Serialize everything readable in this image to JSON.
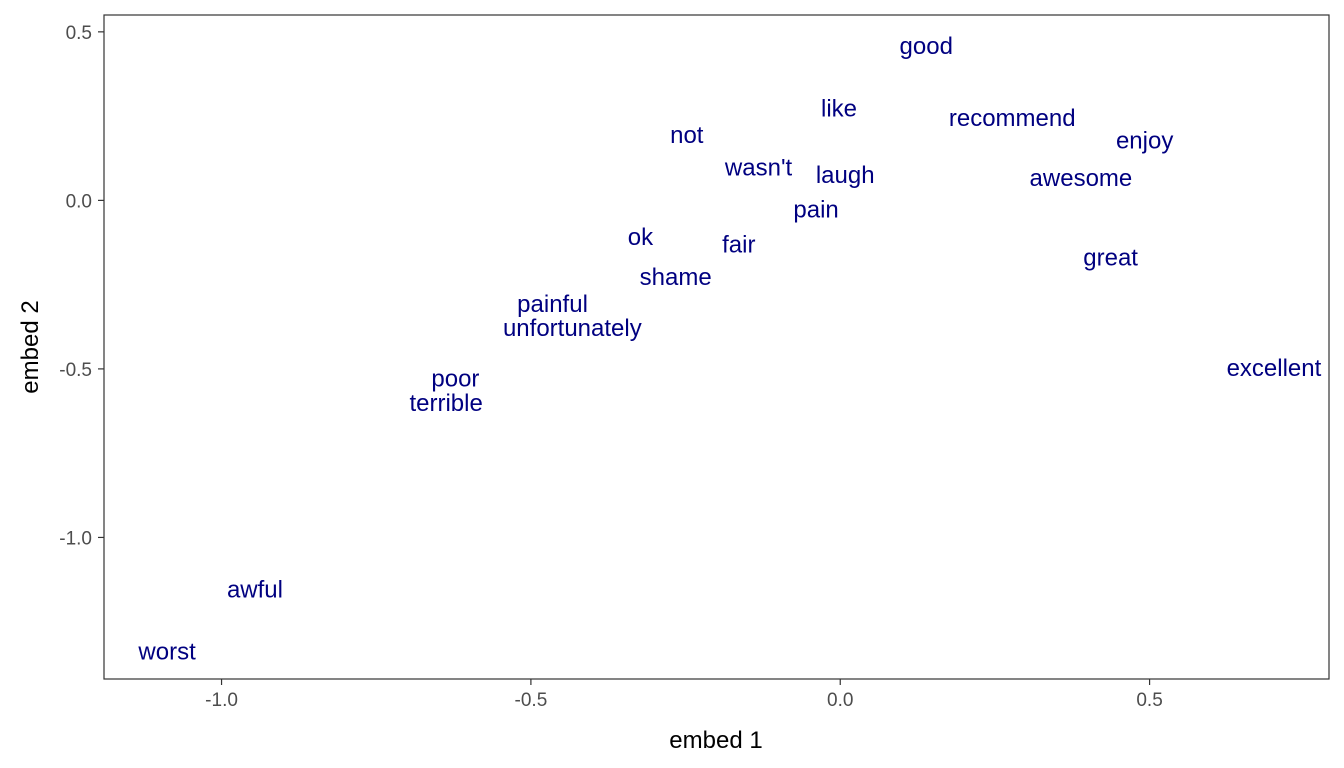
{
  "chart_data": {
    "type": "scatter",
    "xlabel": "embed 1",
    "ylabel": "embed 2",
    "xlim": [
      -1.19,
      0.79
    ],
    "ylim": [
      -1.42,
      0.55
    ],
    "x_ticks": [
      -1.0,
      -0.5,
      0.0,
      0.5
    ],
    "x_tick_labels": [
      "-1.0",
      "-0.5",
      "0.0",
      "0.5"
    ],
    "y_ticks": [
      0.5,
      0.0,
      -0.5,
      -1.0
    ],
    "y_tick_labels": [
      "0.5",
      "0.0",
      "-0.5",
      "-1.0"
    ],
    "grid": false,
    "text_color": "#000080",
    "points": [
      {
        "label": "good",
        "x": 0.139,
        "y": 0.458
      },
      {
        "label": "like",
        "x": -0.002,
        "y": 0.272
      },
      {
        "label": "recommend",
        "x": 0.278,
        "y": 0.245
      },
      {
        "label": "not",
        "x": -0.248,
        "y": 0.194
      },
      {
        "label": "enjoy",
        "x": 0.492,
        "y": 0.177
      },
      {
        "label": "wasn't",
        "x": -0.132,
        "y": 0.098
      },
      {
        "label": "laugh",
        "x": 0.008,
        "y": 0.075
      },
      {
        "label": "awesome",
        "x": 0.389,
        "y": 0.066
      },
      {
        "label": "pain",
        "x": -0.039,
        "y": -0.027
      },
      {
        "label": "ok",
        "x": -0.323,
        "y": -0.109
      },
      {
        "label": "fair",
        "x": -0.164,
        "y": -0.131
      },
      {
        "label": "great",
        "x": 0.437,
        "y": -0.17
      },
      {
        "label": "shame",
        "x": -0.266,
        "y": -0.228
      },
      {
        "label": "painful",
        "x": -0.465,
        "y": -0.308
      },
      {
        "label": "unfortunately",
        "x": -0.433,
        "y": -0.378
      },
      {
        "label": "excellent",
        "x": 0.701,
        "y": -0.497
      },
      {
        "label": "poor",
        "x": -0.622,
        "y": -0.529
      },
      {
        "label": "terrible",
        "x": -0.637,
        "y": -0.601
      },
      {
        "label": "awful",
        "x": -0.946,
        "y": -1.155
      },
      {
        "label": "worst",
        "x": -1.088,
        "y": -1.338
      }
    ]
  }
}
